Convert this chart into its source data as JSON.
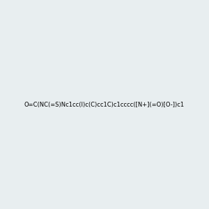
{
  "smiles": "O=C(NC(=S)Nc1cc(I)c(C)cc1C)c1cccc([N+](=O)[O-])c1",
  "image_size": 300,
  "background_color": "#e8eef0",
  "title": ""
}
